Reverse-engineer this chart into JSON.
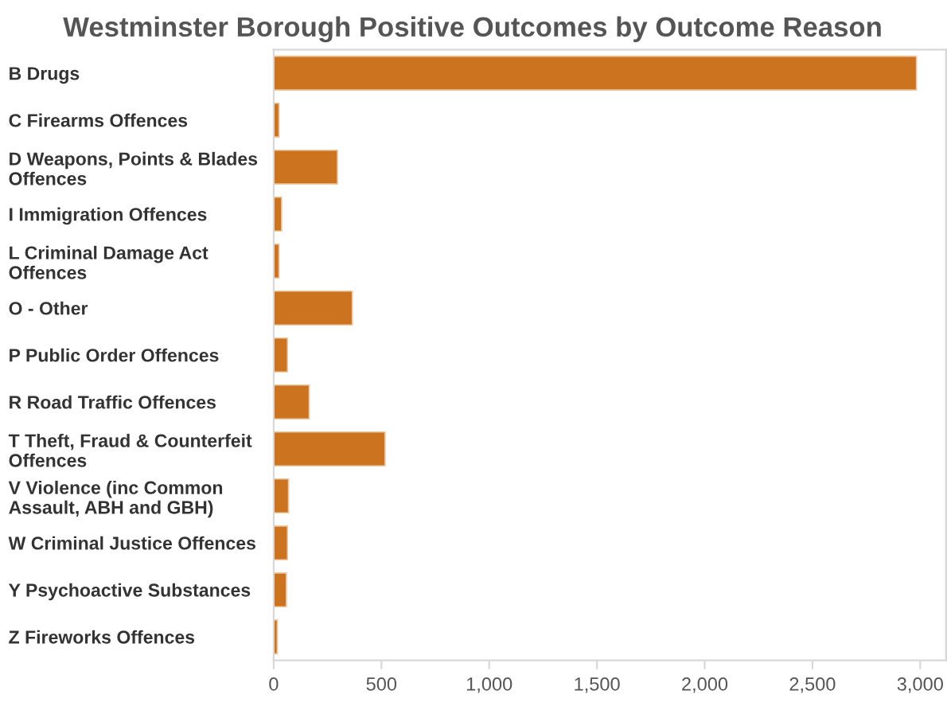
{
  "chart_data": {
    "type": "bar",
    "orientation": "horizontal",
    "title": "Westminster Borough Positive Outcomes by Outcome Reason",
    "categories": [
      "B Drugs",
      "C Firearms Offences",
      "D Weapons, Points & Blades\nOffences",
      "I Immigration Offences",
      "L Criminal Damage Act\nOffences",
      "O - Other",
      "P Public Order Offences",
      "R Road Traffic Offences",
      "T Theft, Fraud & Counterfeit\nOffences",
      "V Violence (inc Common\nAssault, ABH and GBH)",
      "W Criminal Justice Offences",
      "Y Psychoactive Substances",
      "Z Fireworks Offences"
    ],
    "values": [
      2983,
      25,
      296,
      37,
      25,
      365,
      64,
      165,
      517,
      69,
      64,
      59,
      17
    ],
    "color": "#cc7320",
    "xlim": [
      0,
      3120
    ],
    "xticks": [
      {
        "value": 0,
        "label": "0"
      },
      {
        "value": 500,
        "label": "500"
      },
      {
        "value": 1000,
        "label": "1,000"
      },
      {
        "value": 1500,
        "label": "1,500"
      },
      {
        "value": 2000,
        "label": "2,000"
      },
      {
        "value": 2500,
        "label": "2,500"
      },
      {
        "value": 3000,
        "label": "3,000"
      }
    ],
    "grid": false
  }
}
